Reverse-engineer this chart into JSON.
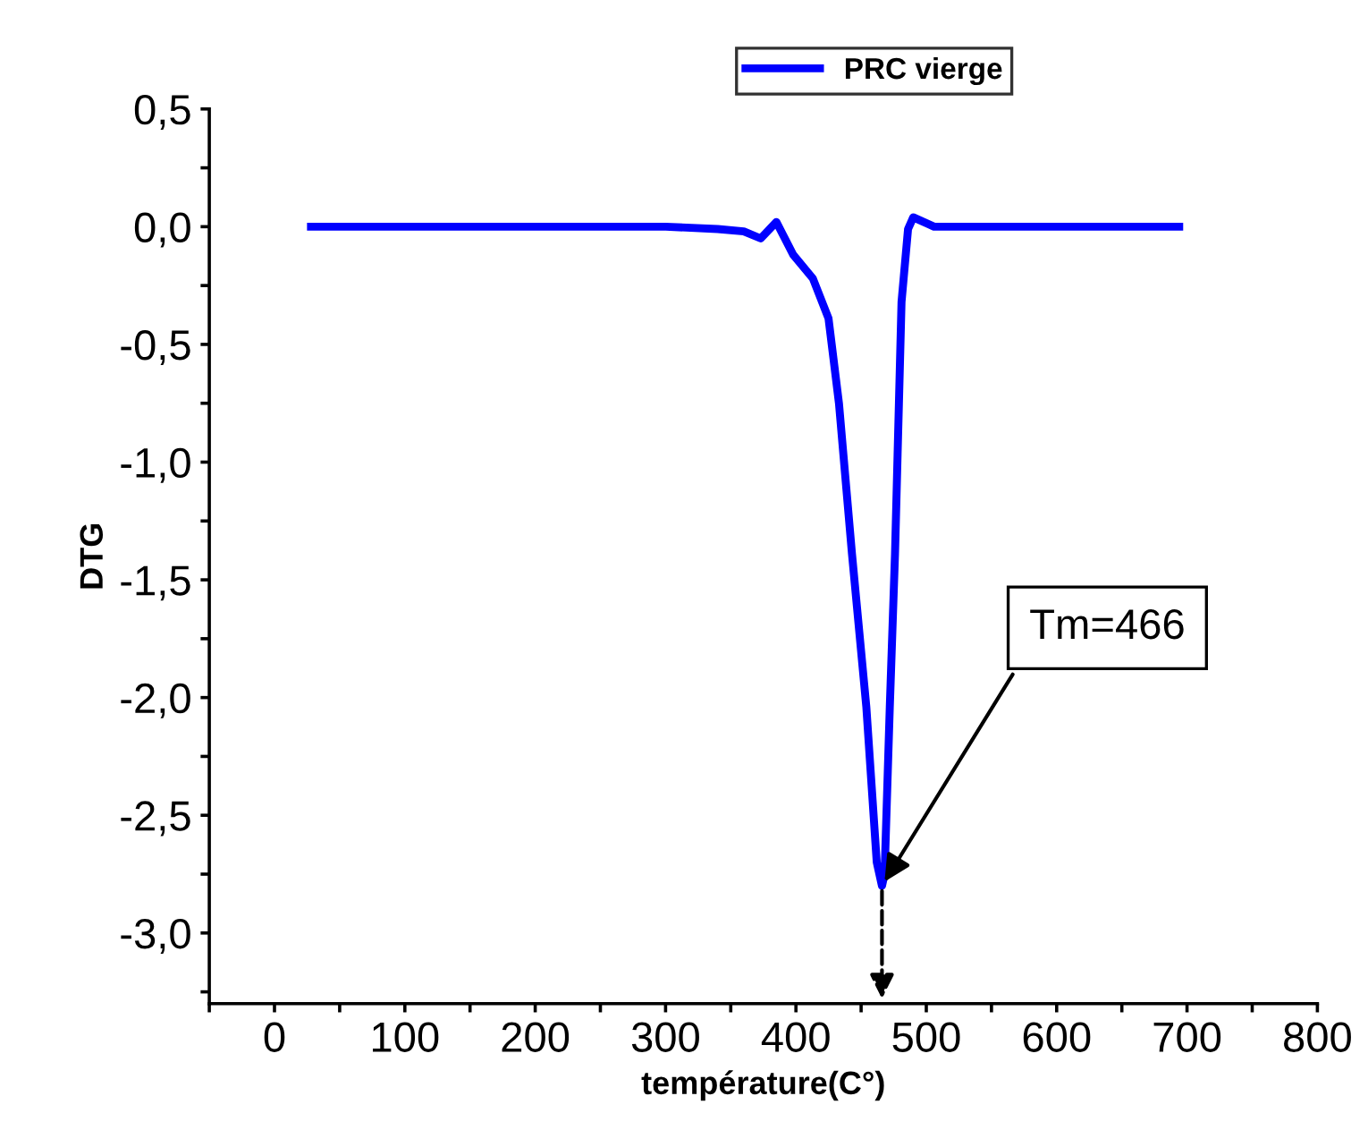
{
  "chart_data": {
    "type": "line",
    "xlabel": "température(C°)",
    "ylabel": "DTG",
    "series": [
      {
        "name": "PRC vierge",
        "color": "#0000ff",
        "x": [
          28,
          60,
          100,
          150,
          200,
          250,
          300,
          340,
          360,
          373,
          385,
          398,
          413,
          425,
          433,
          443,
          454,
          462,
          466,
          468,
          472,
          476,
          479,
          481,
          486,
          490,
          506,
          550,
          600,
          650,
          694
        ],
        "values": [
          0.0,
          0.0,
          0.0,
          0.0,
          0.0,
          0.0,
          0.0,
          -0.01,
          -0.02,
          -0.05,
          0.02,
          -0.12,
          -0.22,
          -0.39,
          -0.75,
          -1.39,
          -2.04,
          -2.7,
          -2.8,
          -2.75,
          -2.04,
          -1.39,
          -0.75,
          -0.32,
          -0.01,
          0.04,
          0.0,
          0.0,
          0.0,
          0.0,
          0.0
        ]
      }
    ],
    "xlim": [
      -50,
      800
    ],
    "ylim": [
      -3.3,
      0.5
    ],
    "xticks": [
      {
        "value": -50,
        "label": null
      },
      0,
      {
        "value": 50,
        "label": null
      },
      100,
      {
        "value": 150,
        "label": null
      },
      200,
      {
        "value": 250,
        "label": null
      },
      300,
      {
        "value": 350,
        "label": null
      },
      400,
      {
        "value": 450,
        "label": null
      },
      500,
      {
        "value": 550,
        "label": null
      },
      600,
      {
        "value": 650,
        "label": null
      },
      700,
      {
        "value": 750,
        "label": null
      },
      800
    ],
    "yticks": [
      {
        "value": -3.25,
        "label": null
      },
      {
        "value": -3.0,
        "label": "-3,0"
      },
      {
        "value": -2.75,
        "label": null
      },
      {
        "value": -2.5,
        "label": "-2,5"
      },
      {
        "value": -2.25,
        "label": null
      },
      {
        "value": -2.0,
        "label": "-2,0"
      },
      {
        "value": -1.75,
        "label": null
      },
      {
        "value": -1.5,
        "label": "-1,5"
      },
      {
        "value": -1.25,
        "label": null
      },
      {
        "value": -1.0,
        "label": "-1,0"
      },
      {
        "value": -0.75,
        "label": null
      },
      {
        "value": -0.5,
        "label": "-0,5"
      },
      {
        "value": -0.25,
        "label": null
      },
      {
        "value": 0.0,
        "label": "0,0"
      },
      {
        "value": 0.25,
        "label": null
      },
      {
        "value": 0.5,
        "label": "0,5"
      }
    ],
    "annotations": [
      {
        "text": "Tm=466",
        "x": 466,
        "y": -2.8
      }
    ],
    "grid": false,
    "legend": "top",
    "marker": "none",
    "line_style": "solid"
  }
}
